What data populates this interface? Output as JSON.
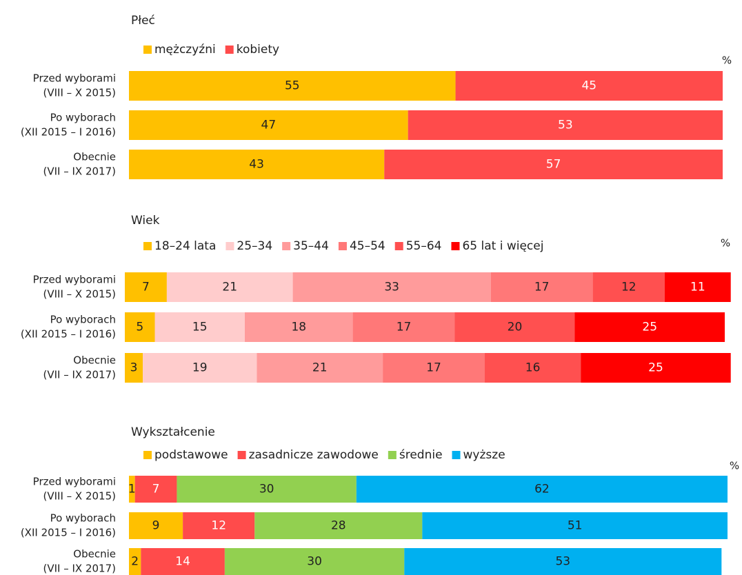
{
  "chart_data": [
    {
      "type": "stacked_bar_h",
      "title": "Płeć",
      "unit": "%",
      "xlim": [
        0,
        100
      ],
      "categories": [
        [
          "Przed wyborami",
          "(VIII – X 2015)"
        ],
        [
          "Po wyborach",
          "(XII 2015 – I 2016)"
        ],
        [
          "Obecnie",
          "(VII – IX 2017)"
        ]
      ],
      "series": [
        {
          "name": "mężczyźni",
          "color": "#ffc000",
          "label_color": "#222222",
          "values": [
            55,
            47,
            43
          ]
        },
        {
          "name": "kobiety",
          "color": "#ff4b4b",
          "label_color": "#ffffff",
          "values": [
            45,
            53,
            57
          ]
        }
      ]
    },
    {
      "type": "stacked_bar_h",
      "title": "Wiek",
      "unit": "%",
      "xlim": [
        0,
        100
      ],
      "categories": [
        [
          "Przed wyborami",
          "(VIII – X 2015)"
        ],
        [
          "Po wyborach",
          "(XII 2015 – I 2016)"
        ],
        [
          "Obecnie",
          "(VII – IX 2017)"
        ]
      ],
      "series": [
        {
          "name": "18–24 lata",
          "color": "#ffc000",
          "label_color": "#222222",
          "values": [
            7,
            5,
            3
          ]
        },
        {
          "name": "25–34",
          "color": "#ffcccc",
          "label_color": "#222222",
          "values": [
            21,
            15,
            19
          ]
        },
        {
          "name": "35–44",
          "color": "#ff9b9b",
          "label_color": "#222222",
          "values": [
            33,
            18,
            21
          ]
        },
        {
          "name": "45–54",
          "color": "#ff7878",
          "label_color": "#222222",
          "values": [
            17,
            17,
            17
          ]
        },
        {
          "name": "55–64",
          "color": "#ff5050",
          "label_color": "#222222",
          "values": [
            12,
            20,
            16
          ]
        },
        {
          "name": "65 lat i więcej",
          "color": "#ff0000",
          "label_color": "#ffffff",
          "values": [
            11,
            25,
            25
          ]
        }
      ]
    },
    {
      "type": "stacked_bar_h",
      "title": "Wykształcenie",
      "unit": "%",
      "xlim": [
        0,
        100
      ],
      "categories": [
        [
          "Przed wyborami",
          "(VIII – X 2015)"
        ],
        [
          "Po wyborach",
          "(XII 2015 – I 2016)"
        ],
        [
          "Obecnie",
          "(VII – IX 2017)"
        ]
      ],
      "series": [
        {
          "name": "podstawowe",
          "color": "#ffc000",
          "label_color": "#222222",
          "values": [
            1,
            9,
            2
          ]
        },
        {
          "name": "zasadnicze zawodowe",
          "color": "#ff4b4b",
          "label_color": "#ffffff",
          "values": [
            7,
            12,
            14
          ]
        },
        {
          "name": "średnie",
          "color": "#92d050",
          "label_color": "#222222",
          "values": [
            30,
            28,
            30
          ]
        },
        {
          "name": "wyższe",
          "color": "#00b0f0",
          "label_color": "#222222",
          "values": [
            62,
            51,
            53
          ]
        }
      ]
    }
  ]
}
